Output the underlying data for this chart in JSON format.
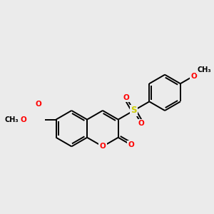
{
  "bg": "#ebebeb",
  "bond_color": "#000000",
  "bond_width": 1.4,
  "atom_colors": {
    "O": "#ff0000",
    "S": "#cccc00",
    "C": "#000000"
  },
  "figsize": [
    3.0,
    3.0
  ],
  "dpi": 100,
  "xlim": [
    -3.2,
    3.8
  ],
  "ylim": [
    -2.4,
    2.8
  ]
}
